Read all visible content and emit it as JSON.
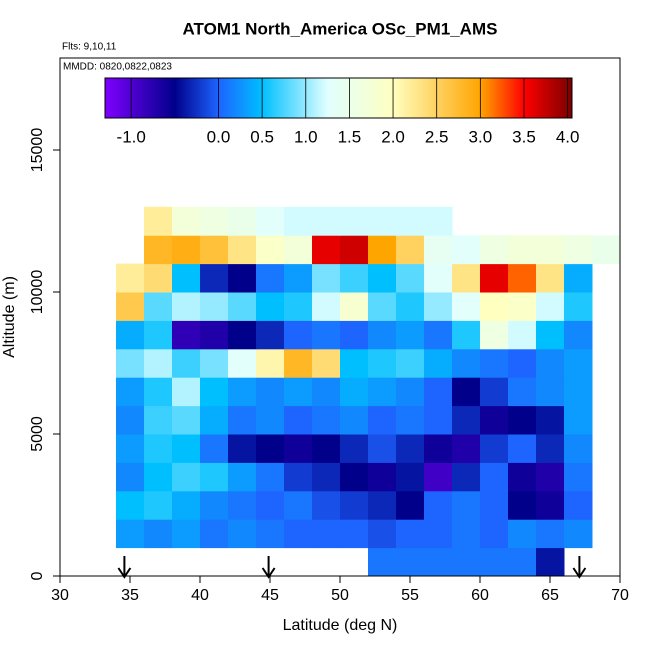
{
  "chart_data": {
    "type": "heatmap",
    "title": "ATOM1 North_America OSc_PM1_AMS",
    "subtitle": "Flts: 9,10,11",
    "annotation": "MMDD: 0820,0822,0823",
    "x_label": "Latitude (deg N)",
    "y_label": "Altitude (m)",
    "xlim": [
      30,
      70
    ],
    "ylim": [
      0,
      18240
    ],
    "xticks": [
      30,
      35,
      40,
      45,
      50,
      55,
      60,
      65,
      70
    ],
    "yticks": [
      0,
      5000,
      10000,
      15000
    ],
    "xbins": [
      34,
      36,
      38,
      40,
      42,
      44,
      46,
      48,
      50,
      52,
      54,
      56,
      58,
      60,
      62,
      64,
      66,
      68,
      70
    ],
    "ybins": [
      0,
      1000,
      2000,
      3000,
      4000,
      5000,
      6000,
      7000,
      8000,
      9000,
      10000,
      11000,
      12000,
      13000
    ],
    "z": [
      [
        null,
        null,
        null,
        null,
        null,
        null,
        null,
        null,
        null,
        0.1,
        0.1,
        0.1,
        0.1,
        0.1,
        0.1,
        -0.4,
        null,
        null
      ],
      [
        0.3,
        0.2,
        0.3,
        0.1,
        0.2,
        0.1,
        0.0,
        0.0,
        0.0,
        -0.1,
        0.0,
        0.0,
        0.1,
        0.0,
        0.2,
        0.1,
        0.2,
        null
      ],
      [
        0.5,
        0.6,
        0.4,
        0.2,
        0.1,
        0.0,
        0.1,
        -0.1,
        -0.2,
        -0.3,
        -0.5,
        0.0,
        0.1,
        0.0,
        -0.5,
        -0.6,
        0.0,
        null
      ],
      [
        0.2,
        0.5,
        0.7,
        0.6,
        0.3,
        0.1,
        -0.2,
        -0.3,
        -0.5,
        -0.6,
        -0.4,
        -0.9,
        -0.3,
        0.0,
        -0.6,
        -0.7,
        0.1,
        null
      ],
      [
        0.3,
        0.6,
        0.5,
        0.1,
        -0.4,
        -0.5,
        -0.6,
        -0.5,
        -0.3,
        -0.1,
        -0.3,
        -0.6,
        -0.7,
        -0.2,
        0.0,
        -0.3,
        0.2,
        null
      ],
      [
        0.2,
        0.7,
        0.8,
        0.4,
        0.1,
        0.2,
        0.0,
        0.1,
        0.2,
        0.0,
        0.1,
        0.0,
        -0.3,
        -0.6,
        -0.5,
        -0.4,
        0.3,
        null
      ],
      [
        0.3,
        0.6,
        1.1,
        0.5,
        0.3,
        0.2,
        0.3,
        0.2,
        0.4,
        0.3,
        0.2,
        0.0,
        -0.5,
        -0.2,
        0.1,
        0.2,
        0.3,
        null
      ],
      [
        0.9,
        1.1,
        0.7,
        0.9,
        1.3,
        2.1,
        2.8,
        2.4,
        0.5,
        0.6,
        0.7,
        0.4,
        0.2,
        0.1,
        0.0,
        0.2,
        0.3,
        null
      ],
      [
        0.4,
        0.6,
        -0.8,
        -0.7,
        -0.5,
        -0.3,
        0.0,
        0.1,
        0.0,
        0.2,
        0.3,
        0.1,
        0.6,
        1.6,
        1.2,
        0.5,
        0.2,
        null
      ],
      [
        2.6,
        0.8,
        1.1,
        1.0,
        0.8,
        0.5,
        0.6,
        1.2,
        1.8,
        0.8,
        0.6,
        1.0,
        1.3,
        2.0,
        1.9,
        1.2,
        0.6,
        null
      ],
      [
        2.2,
        2.4,
        0.5,
        -0.3,
        -0.5,
        0.1,
        0.3,
        0.9,
        0.7,
        0.5,
        0.8,
        1.3,
        2.3,
        3.6,
        3.2,
        2.3,
        0.4,
        null
      ],
      [
        null,
        2.8,
        2.9,
        2.7,
        2.3,
        1.9,
        1.7,
        3.6,
        3.7,
        3.0,
        2.5,
        1.4,
        1.3,
        1.6,
        1.7,
        1.7,
        1.6,
        1.5
      ],
      [
        null,
        2.2,
        1.7,
        1.6,
        1.5,
        1.3,
        1.2,
        1.2,
        1.2,
        1.2,
        1.2,
        1.2,
        null,
        null,
        null,
        null,
        null,
        null
      ]
    ],
    "colorbar": {
      "lim": [
        -1.3,
        4.05
      ],
      "stops": [
        -1.3,
        -0.5,
        0,
        0.5,
        1.25,
        2,
        3,
        3.5,
        4.05
      ],
      "colors": [
        "#7f00ff",
        "#00008b",
        "#1e64ff",
        "#00bfff",
        "#e0ffff",
        "#ffffc0",
        "#ffa500",
        "#ff0000",
        "#7a0000"
      ],
      "ticks": [
        {
          "value": -1,
          "label": "-1.0"
        },
        {
          "value": 0,
          "label": "0.0"
        },
        0.5,
        {
          "value": 1,
          "label": "1.0"
        },
        1.5,
        {
          "value": 2,
          "label": "2.0"
        },
        2.5,
        {
          "value": 3,
          "label": "3.0"
        },
        3.5,
        {
          "value": 4,
          "label": "4.0"
        }
      ]
    },
    "arrows_x": [
      34.6,
      44.9,
      67.1
    ]
  }
}
